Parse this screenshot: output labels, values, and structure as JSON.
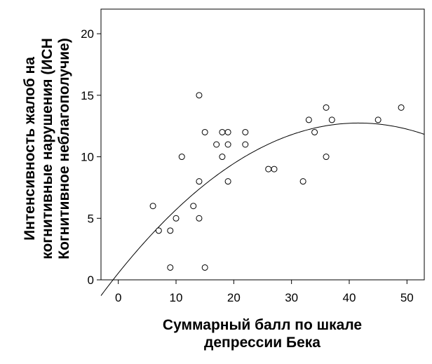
{
  "chart_data": {
    "type": "scatter",
    "xlabel_lines": [
      "Суммарный балл по шкале",
      "депрессии Бека"
    ],
    "ylabel_lines": [
      "Интенсивность жалоб на",
      "когнитивные нарушения (ИСН",
      "Когнитивное неблагополучие)"
    ],
    "xlim": [
      -3,
      53
    ],
    "ylim": [
      0,
      22
    ],
    "x_ticks": [
      0,
      10,
      20,
      30,
      40,
      50
    ],
    "y_ticks": [
      0,
      5,
      10,
      15,
      20
    ],
    "grid": false,
    "points": [
      {
        "x": 6,
        "y": 6
      },
      {
        "x": 7,
        "y": 4
      },
      {
        "x": 9,
        "y": 4
      },
      {
        "x": 9,
        "y": 1
      },
      {
        "x": 10,
        "y": 5
      },
      {
        "x": 11,
        "y": 10
      },
      {
        "x": 13,
        "y": 6
      },
      {
        "x": 14,
        "y": 15
      },
      {
        "x": 14,
        "y": 8
      },
      {
        "x": 14,
        "y": 5
      },
      {
        "x": 15,
        "y": 12
      },
      {
        "x": 15,
        "y": 1
      },
      {
        "x": 17,
        "y": 11
      },
      {
        "x": 18,
        "y": 12
      },
      {
        "x": 18,
        "y": 10
      },
      {
        "x": 19,
        "y": 12
      },
      {
        "x": 19,
        "y": 11
      },
      {
        "x": 19,
        "y": 8
      },
      {
        "x": 22,
        "y": 12
      },
      {
        "x": 22,
        "y": 11
      },
      {
        "x": 26,
        "y": 9
      },
      {
        "x": 27,
        "y": 9
      },
      {
        "x": 32,
        "y": 8
      },
      {
        "x": 33,
        "y": 13
      },
      {
        "x": 34,
        "y": 12
      },
      {
        "x": 36,
        "y": 14
      },
      {
        "x": 36,
        "y": 10
      },
      {
        "x": 37,
        "y": 13
      },
      {
        "x": 45,
        "y": 13
      },
      {
        "x": 49,
        "y": 14
      }
    ],
    "fit_curve": {
      "type": "quadratic",
      "coefficients": {
        "a": -0.00705,
        "b": 0.5866,
        "c": 0.54
      },
      "x_range": [
        -3,
        53
      ]
    }
  }
}
